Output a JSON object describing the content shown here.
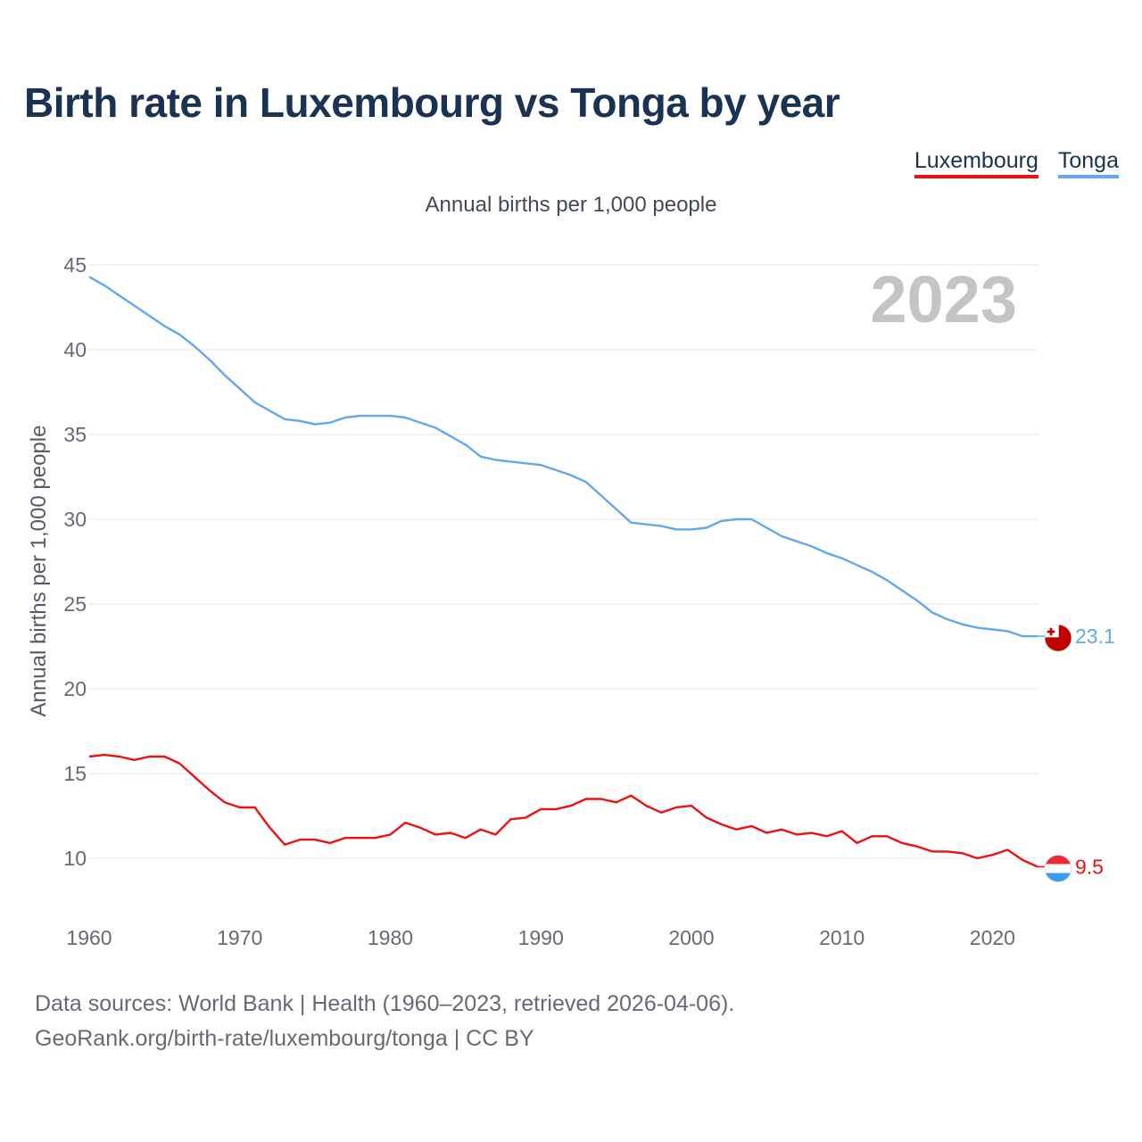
{
  "title": "Birth rate in Luxembourg vs Tonga by year",
  "subtitle": "Annual births per 1,000 people",
  "legend": [
    {
      "name": "Luxembourg",
      "color": "#ee1111"
    },
    {
      "name": "Tonga",
      "color": "#62a8ea"
    }
  ],
  "year_label": "2023",
  "footer": {
    "line1": "Data sources: World Bank | Health (1960–2023, retrieved 2026-04-06).",
    "line2": "GeoRank.org/birth-rate/luxembourg/tonga | CC BY"
  },
  "chart_data": {
    "type": "line",
    "title": "Birth rate in Luxembourg vs Tonga by year",
    "xlabel": "",
    "ylabel": "Annual births per 1,000 people",
    "xlim": [
      1960,
      2023
    ],
    "ylim": [
      7,
      45
    ],
    "yticks": [
      10,
      15,
      20,
      25,
      30,
      35,
      40,
      45
    ],
    "xticks": [
      1960,
      1970,
      1980,
      1990,
      2000,
      2010,
      2020
    ],
    "grid": true,
    "x": [
      1960,
      1961,
      1962,
      1963,
      1964,
      1965,
      1966,
      1967,
      1968,
      1969,
      1970,
      1971,
      1972,
      1973,
      1974,
      1975,
      1976,
      1977,
      1978,
      1979,
      1980,
      1981,
      1982,
      1983,
      1984,
      1985,
      1986,
      1987,
      1988,
      1989,
      1990,
      1991,
      1992,
      1993,
      1994,
      1995,
      1996,
      1997,
      1998,
      1999,
      2000,
      2001,
      2002,
      2003,
      2004,
      2005,
      2006,
      2007,
      2008,
      2009,
      2010,
      2011,
      2012,
      2013,
      2014,
      2015,
      2016,
      2017,
      2018,
      2019,
      2020,
      2021,
      2022,
      2023
    ],
    "series": [
      {
        "name": "Luxembourg",
        "color": "#ee1111",
        "end_label": "9.5",
        "values": [
          16.0,
          16.1,
          16.0,
          15.8,
          16.0,
          16.0,
          15.6,
          14.8,
          14.0,
          13.3,
          13.0,
          13.0,
          11.8,
          10.8,
          11.1,
          11.1,
          10.9,
          11.2,
          11.2,
          11.2,
          11.4,
          12.1,
          11.8,
          11.4,
          11.5,
          11.2,
          11.7,
          11.4,
          12.3,
          12.4,
          12.9,
          12.9,
          13.1,
          13.5,
          13.5,
          13.3,
          13.7,
          13.1,
          12.7,
          13.0,
          13.1,
          12.4,
          12.0,
          11.7,
          11.9,
          11.5,
          11.7,
          11.4,
          11.5,
          11.3,
          11.6,
          10.9,
          11.3,
          11.3,
          10.9,
          10.7,
          10.4,
          10.4,
          10.3,
          10.0,
          10.2,
          10.5,
          9.9,
          9.5
        ]
      },
      {
        "name": "Tonga",
        "color": "#62a8ea",
        "end_label": "23.1",
        "values": [
          44.3,
          43.8,
          43.2,
          42.6,
          42.0,
          41.4,
          40.9,
          40.2,
          39.4,
          38.5,
          37.7,
          36.9,
          36.4,
          35.9,
          35.8,
          35.6,
          35.7,
          36.0,
          36.1,
          36.1,
          36.1,
          36.0,
          35.7,
          35.4,
          34.9,
          34.4,
          33.7,
          33.5,
          33.4,
          33.3,
          33.2,
          32.9,
          32.6,
          32.2,
          31.4,
          30.6,
          29.8,
          29.7,
          29.6,
          29.4,
          29.4,
          29.5,
          29.9,
          30.0,
          30.0,
          29.5,
          29.0,
          28.7,
          28.4,
          28.0,
          27.7,
          27.3,
          26.9,
          26.4,
          25.8,
          25.2,
          24.5,
          24.1,
          23.8,
          23.6,
          23.5,
          23.4,
          23.1,
          23.1
        ]
      }
    ]
  }
}
